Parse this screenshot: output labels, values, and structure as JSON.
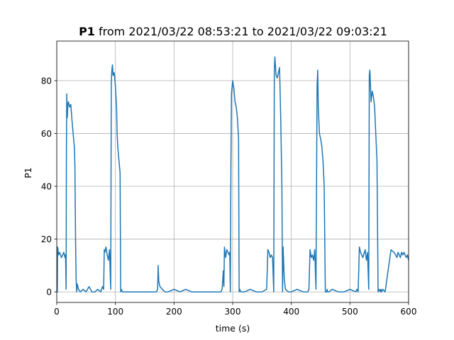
{
  "chart_data": {
    "type": "line",
    "title_bold": "P1",
    "title_rest": " from 2021/03/22 08:53:21 to 2021/03/22 09:03:21",
    "xlabel": "time (s)",
    "ylabel": "P1",
    "xlim": [
      0,
      600
    ],
    "ylim": [
      -4,
      95
    ],
    "xticks": [
      0,
      100,
      200,
      300,
      400,
      500,
      600
    ],
    "yticks": [
      0,
      20,
      40,
      60,
      80
    ],
    "grid": true,
    "color": "#1f77b4",
    "series": [
      {
        "x": [
          0,
          1,
          1.5,
          2,
          3,
          5,
          8,
          10,
          12,
          14,
          15,
          16,
          16.5,
          17,
          18,
          19,
          20,
          22,
          24,
          26,
          28,
          30,
          31,
          32,
          33,
          34,
          35,
          37,
          40,
          45,
          50,
          55,
          60,
          65,
          70,
          75,
          78,
          80,
          81,
          82,
          84,
          86,
          88,
          90,
          92,
          93,
          94,
          95,
          96,
          98,
          100,
          102,
          103,
          104,
          106,
          108,
          109,
          110,
          112,
          115,
          120,
          140,
          160,
          170,
          172,
          173,
          174,
          176,
          180,
          185,
          190,
          200,
          210,
          220,
          230,
          240,
          250,
          260,
          270,
          280,
          282,
          284,
          285,
          286,
          288,
          290,
          292,
          294,
          295,
          296,
          297,
          298,
          300,
          302,
          304,
          306,
          308,
          310,
          311,
          312,
          314,
          320,
          330,
          340,
          350,
          358,
          360,
          362,
          364,
          366,
          368,
          370,
          371,
          372,
          374,
          376,
          378,
          380,
          382,
          384,
          385,
          386,
          388,
          390,
          395,
          400,
          410,
          420,
          428,
          430,
          432,
          434,
          436,
          438,
          440,
          442,
          444,
          445,
          446,
          448,
          450,
          452,
          454,
          456,
          458,
          460,
          461,
          462,
          464,
          470,
          480,
          490,
          500,
          510,
          512,
          514,
          516,
          518,
          520,
          522,
          526,
          528,
          530,
          532,
          533,
          534,
          535,
          536,
          538,
          540,
          542,
          544,
          546,
          548,
          550,
          552,
          553,
          554,
          556,
          560,
          570,
          575,
          578,
          580,
          582,
          584,
          586,
          588,
          590,
          592,
          594,
          596,
          598,
          600
        ],
        "y": [
          0,
          0,
          17,
          16,
          14,
          15,
          13,
          14,
          15,
          13,
          14,
          1,
          52,
          75,
          66,
          71,
          72,
          70,
          71,
          65,
          60,
          55,
          48,
          20,
          5,
          0,
          3,
          1,
          0,
          1,
          0,
          2,
          0,
          0,
          1,
          0,
          2,
          1,
          16,
          15,
          17,
          14,
          12,
          16,
          1,
          79,
          84,
          86,
          82,
          83,
          78,
          70,
          60,
          55,
          50,
          45,
          0,
          1,
          0,
          0,
          0,
          0,
          0,
          0,
          1,
          10,
          4,
          2,
          1,
          0,
          0,
          1,
          0,
          1,
          0,
          0,
          0,
          0,
          0,
          0,
          1,
          8,
          2,
          17,
          13,
          16,
          15,
          14,
          15,
          0,
          46,
          75,
          80,
          77,
          72,
          70,
          66,
          58,
          0,
          1,
          0,
          0,
          1,
          0,
          0,
          1,
          16,
          15,
          13,
          14,
          13,
          0,
          84,
          89,
          82,
          81,
          83,
          85,
          65,
          40,
          0,
          17,
          5,
          1,
          0,
          0,
          1,
          0,
          0,
          1,
          16,
          13,
          14,
          12,
          16,
          1,
          78,
          84,
          70,
          60,
          58,
          55,
          50,
          40,
          0,
          0,
          1,
          0,
          0,
          1,
          0,
          0,
          1,
          0,
          1,
          0,
          17,
          15,
          14,
          13,
          16,
          12,
          15,
          1,
          82,
          84,
          78,
          72,
          76,
          74,
          70,
          60,
          50,
          0,
          1,
          0,
          1,
          0,
          1,
          0,
          16,
          15,
          14,
          13,
          15,
          14,
          13,
          15,
          14,
          15,
          14,
          13,
          14,
          12
        ]
      }
    ]
  }
}
